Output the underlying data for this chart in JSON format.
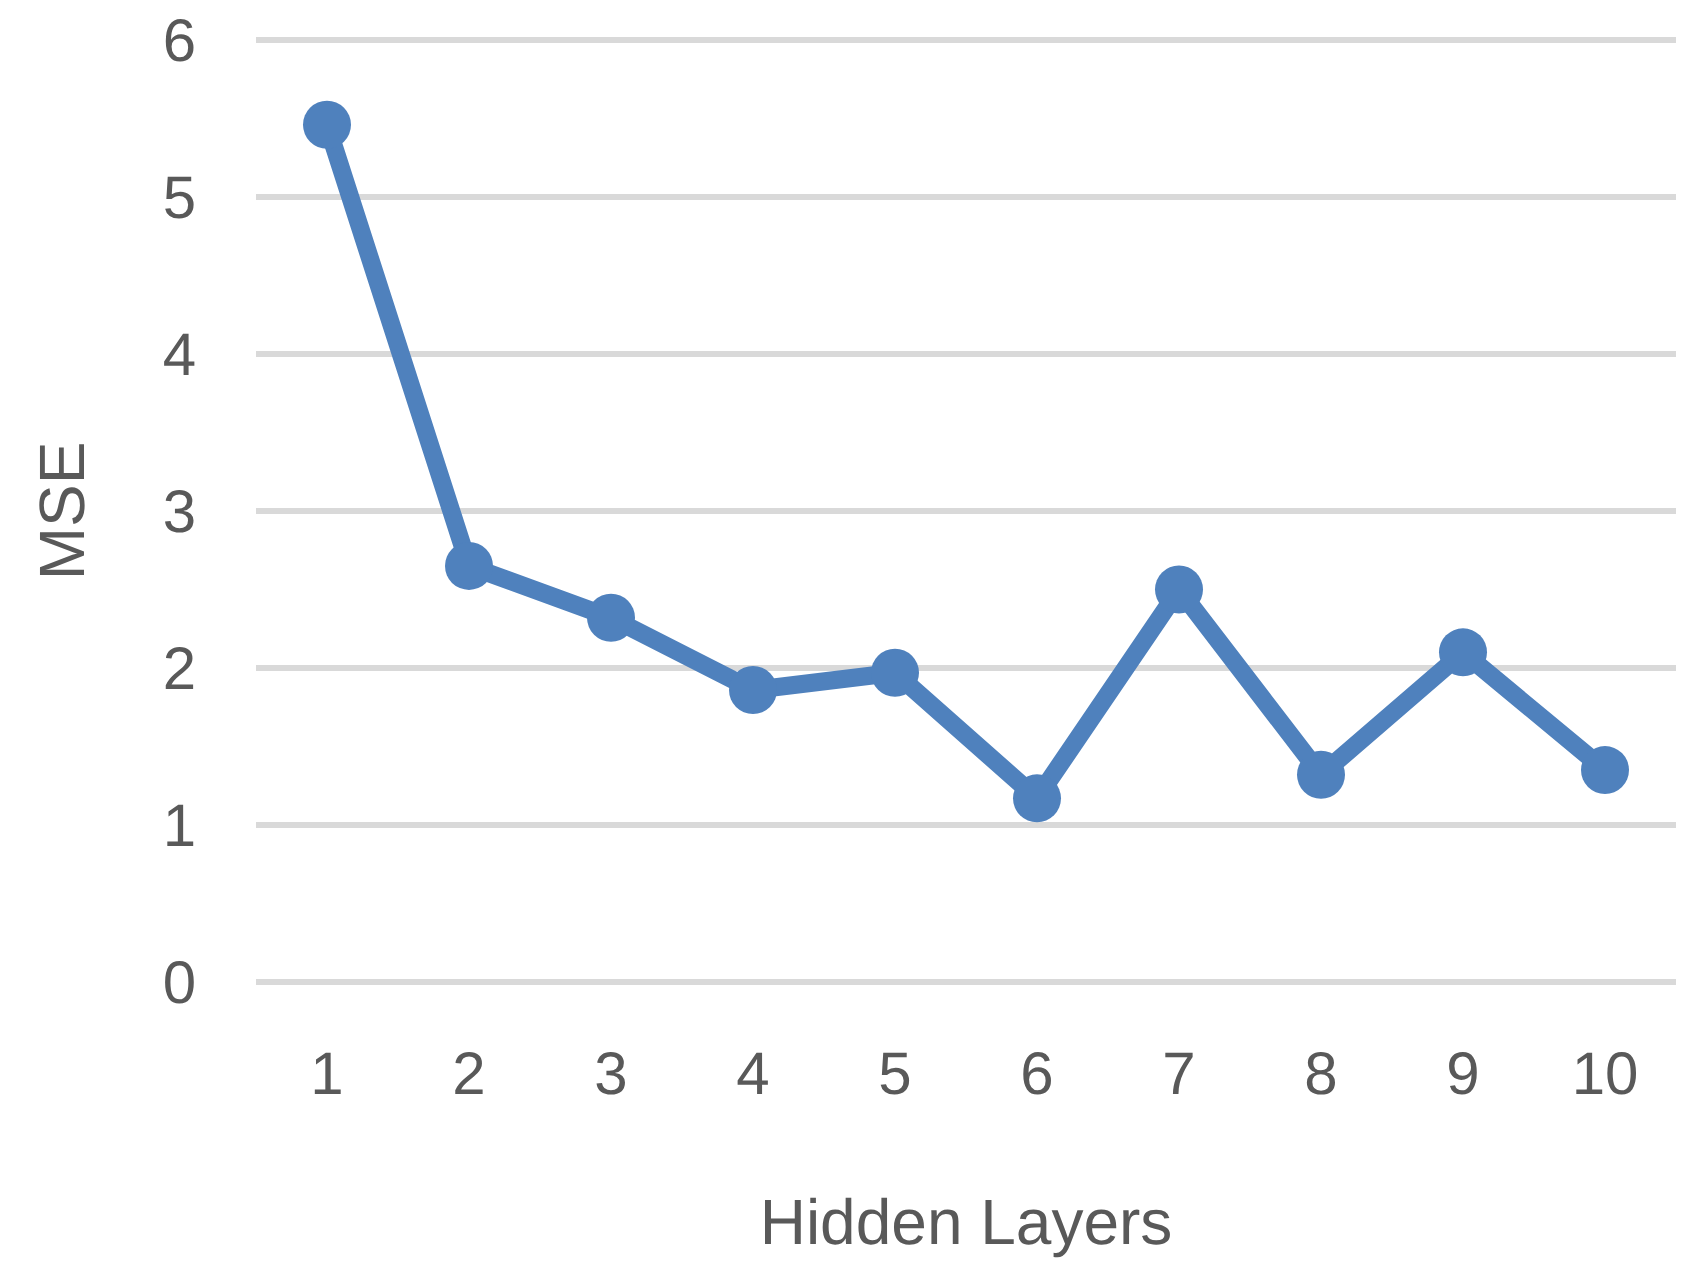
{
  "chart_data": {
    "type": "line",
    "xlabel": "Hidden Layers",
    "ylabel": "MSE",
    "categories": [
      "1",
      "2",
      "3",
      "4",
      "5",
      "6",
      "7",
      "8",
      "9",
      "10"
    ],
    "series": [
      {
        "color": "#4f81bd",
        "values": [
          5.46,
          2.65,
          2.32,
          1.86,
          1.97,
          1.17,
          2.5,
          1.32,
          2.1,
          1.35
        ]
      }
    ],
    "ylim": [
      0,
      6
    ],
    "yticks": [
      0,
      1,
      2,
      3,
      4,
      5,
      6
    ],
    "grid": "y",
    "marker": "circle",
    "line_style": "solid"
  }
}
